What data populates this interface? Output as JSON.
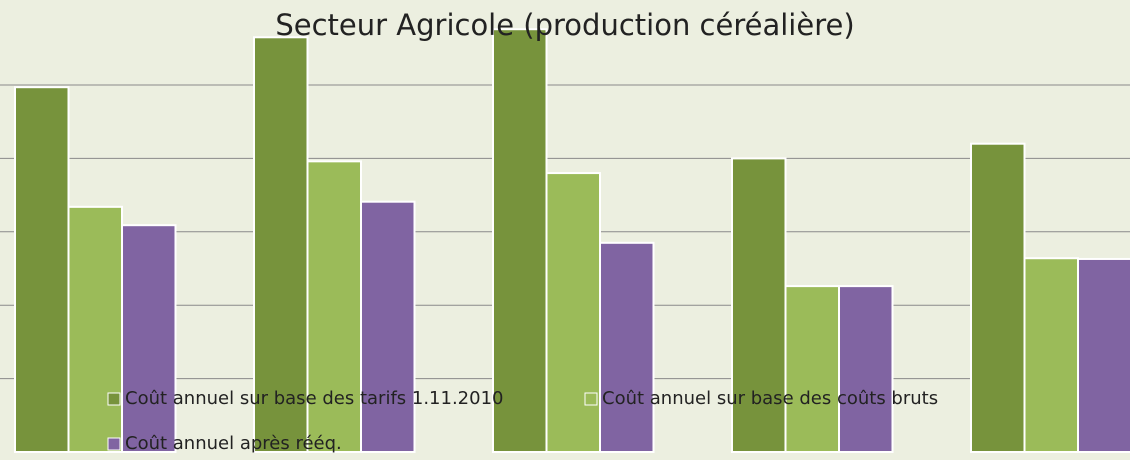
{
  "chart_data": {
    "type": "bar",
    "title": "Secteur Agricole (production céréalière)",
    "categories": [
      null,
      null,
      null,
      null,
      null
    ],
    "series": [
      {
        "name": "Coût annuel sur base des tarifs 1.11.2010",
        "color": "#77933c",
        "values": [
          4.97,
          5.65,
          5.76,
          4.0,
          4.2
        ]
      },
      {
        "name": "Coût annuel sur base des coûts bruts",
        "color": "#9bbb59",
        "values": [
          3.34,
          3.96,
          3.8,
          2.26,
          2.64
        ]
      },
      {
        "name": "Coût annuel après rééq.",
        "color": "#8064a2",
        "values": [
          3.09,
          3.41,
          2.85,
          2.26,
          2.63
        ]
      }
    ],
    "ylim": [
      0,
      6
    ],
    "yticks": [
      1,
      2,
      3,
      4,
      5
    ],
    "grid": true
  }
}
